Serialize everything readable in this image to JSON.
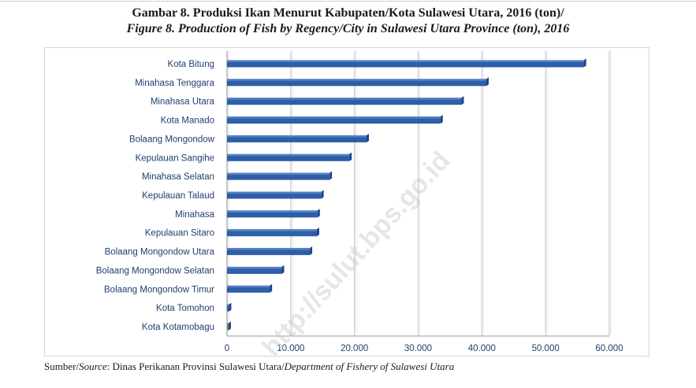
{
  "header": {
    "title_id": "Gambar 8. Produksi Ikan Menurut Kabupaten/Kota Sulawesi Utara, 2016 (ton)/",
    "title_en": "Figure 8. Production of Fish by Regency/City in Sulawesi Utara Province (ton), 2016"
  },
  "source": {
    "label_id": "Sumber/",
    "label_en": "Source",
    "text_id": ": Dinas Perikanan Provinsi Sulawesi Utara/",
    "text_en": "Department of Fishery of Sulawesi Utara"
  },
  "watermark": {
    "text": "http://sulut.bps.go.id"
  },
  "chart_data": {
    "type": "bar",
    "orientation": "horizontal",
    "categories": [
      "Kota Bitung",
      "Minahasa Tenggara",
      "Minahasa Utara",
      "Kota Manado",
      "Bolaang Mongondow",
      "Kepulauan Sangihe",
      "Minahasa Selatan",
      "Kepulauan Talaud",
      "Minahasa",
      "Kepulauan Sitaro",
      "Bolaang Mongondow Utara",
      "Bolaang Mongondow Selatan",
      "Bolaang Mongondow Timur",
      "Kota Tomohon",
      "Kota Kotamobagu"
    ],
    "values": [
      56000,
      40700,
      36800,
      33500,
      21900,
      19200,
      16100,
      14800,
      14200,
      14100,
      13000,
      8600,
      6700,
      300,
      200
    ],
    "bar_colors": [
      "#2e5ea8",
      "#2e5ea8",
      "#2e5ea8",
      "#2e5ea8",
      "#2e5ea8",
      "#2e5ea8",
      "#2e5ea8",
      "#2e5ea8",
      "#2e5ea8",
      "#2e5ea8",
      "#2e5ea8",
      "#2e5ea8",
      "#2e5ea8",
      "#2e5ea8",
      "#6f8f3a"
    ],
    "xlim": [
      0,
      60000
    ],
    "xticks": [
      0,
      10000,
      20000,
      30000,
      40000,
      50000,
      60000
    ],
    "xtick_labels": [
      "0",
      "10.000",
      "20.000",
      "30.000",
      "40.000",
      "50.000",
      "60.000"
    ],
    "grid": true,
    "legend": "none",
    "xlabel": "",
    "ylabel": "",
    "colors": {
      "bar": "#2e5ea8",
      "bar_dark": "#1f4585",
      "bar_light": "#5f89cf",
      "grid": "#c9c9c9",
      "axis": "#9a9a9a",
      "label": "#1f3e6e"
    }
  }
}
